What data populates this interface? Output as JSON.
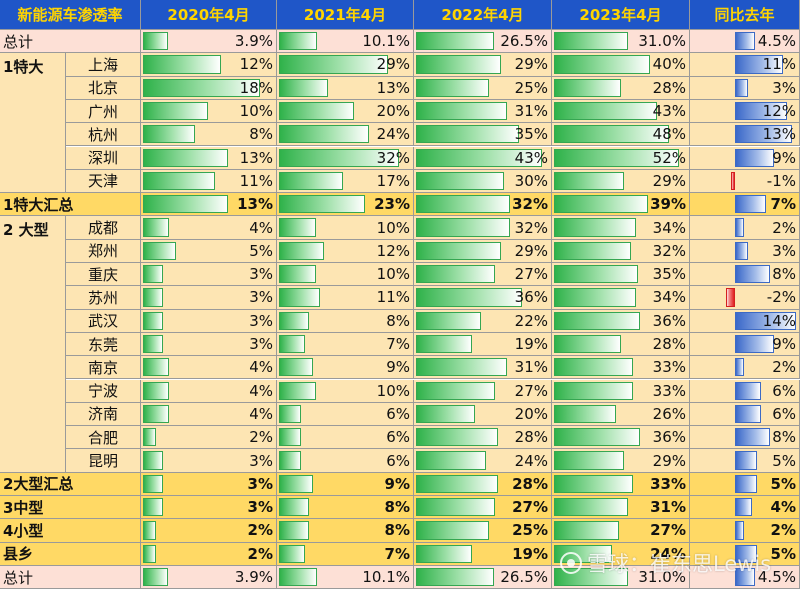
{
  "colors": {
    "header_bg": "#1f56c8",
    "header_text": "#ffd400",
    "total_bg": "#fde0d6",
    "group_bg": "#fde5b3",
    "subtotal_bg": "#ffd965",
    "bar_green": "#2fb24a",
    "bar_blue": "#3a68c9",
    "bar_red": "#e02020"
  },
  "table": {
    "title": "新能源车渗透率",
    "columns": [
      "2020年4月",
      "2021年4月",
      "2022年4月",
      "2023年4月",
      "同比去年"
    ],
    "rows": [
      {
        "kind": "total",
        "group": "总计",
        "city": "",
        "values": [
          "3.9%",
          "10.1%",
          "26.5%",
          "31.0%",
          "4.5%"
        ],
        "nums": [
          3.9,
          10.1,
          26.5,
          31.0,
          4.5
        ]
      },
      {
        "kind": "city",
        "group": "1特大",
        "city": "上海",
        "values": [
          "12%",
          "29%",
          "29%",
          "40%",
          "11%"
        ],
        "nums": [
          12,
          29,
          29,
          40,
          11
        ]
      },
      {
        "kind": "city",
        "group": "",
        "city": "北京",
        "values": [
          "18%",
          "13%",
          "25%",
          "28%",
          "3%"
        ],
        "nums": [
          18,
          13,
          25,
          28,
          3
        ]
      },
      {
        "kind": "city",
        "group": "",
        "city": "广州",
        "values": [
          "10%",
          "20%",
          "31%",
          "43%",
          "12%"
        ],
        "nums": [
          10,
          20,
          31,
          43,
          12
        ]
      },
      {
        "kind": "city",
        "group": "",
        "city": "杭州",
        "values": [
          "8%",
          "24%",
          "35%",
          "48%",
          "13%"
        ],
        "nums": [
          8,
          24,
          35,
          48,
          13
        ]
      },
      {
        "kind": "city",
        "group": "",
        "city": "深圳",
        "values": [
          "13%",
          "32%",
          "43%",
          "52%",
          "9%"
        ],
        "nums": [
          13,
          32,
          43,
          52,
          9
        ]
      },
      {
        "kind": "city",
        "group": "",
        "city": "天津",
        "values": [
          "11%",
          "17%",
          "30%",
          "29%",
          "-1%"
        ],
        "nums": [
          11,
          17,
          30,
          29,
          -1
        ]
      },
      {
        "kind": "subtotal",
        "group": "1特大汇总",
        "city": "",
        "values": [
          "13%",
          "23%",
          "32%",
          "39%",
          "7%"
        ],
        "nums": [
          13,
          23,
          32,
          39,
          7
        ]
      },
      {
        "kind": "city",
        "group": "2 大型",
        "city": "成都",
        "values": [
          "4%",
          "10%",
          "32%",
          "34%",
          "2%"
        ],
        "nums": [
          4,
          10,
          32,
          34,
          2
        ]
      },
      {
        "kind": "city",
        "group": "",
        "city": "郑州",
        "values": [
          "5%",
          "12%",
          "29%",
          "32%",
          "3%"
        ],
        "nums": [
          5,
          12,
          29,
          32,
          3
        ]
      },
      {
        "kind": "city",
        "group": "",
        "city": "重庆",
        "values": [
          "3%",
          "10%",
          "27%",
          "35%",
          "8%"
        ],
        "nums": [
          3,
          10,
          27,
          35,
          8
        ]
      },
      {
        "kind": "city",
        "group": "",
        "city": "苏州",
        "values": [
          "3%",
          "11%",
          "36%",
          "34%",
          "-2%"
        ],
        "nums": [
          3,
          11,
          36,
          34,
          -2
        ]
      },
      {
        "kind": "city",
        "group": "",
        "city": "武汉",
        "values": [
          "3%",
          "8%",
          "22%",
          "36%",
          "14%"
        ],
        "nums": [
          3,
          8,
          22,
          36,
          14
        ]
      },
      {
        "kind": "city",
        "group": "",
        "city": "东莞",
        "values": [
          "3%",
          "7%",
          "19%",
          "28%",
          "9%"
        ],
        "nums": [
          3,
          7,
          19,
          28,
          9
        ]
      },
      {
        "kind": "city",
        "group": "",
        "city": "南京",
        "values": [
          "4%",
          "9%",
          "31%",
          "33%",
          "2%"
        ],
        "nums": [
          4,
          9,
          31,
          33,
          2
        ]
      },
      {
        "kind": "city",
        "group": "",
        "city": "宁波",
        "values": [
          "4%",
          "10%",
          "27%",
          "33%",
          "6%"
        ],
        "nums": [
          4,
          10,
          27,
          33,
          6
        ]
      },
      {
        "kind": "city",
        "group": "",
        "city": "济南",
        "values": [
          "4%",
          "6%",
          "20%",
          "26%",
          "6%"
        ],
        "nums": [
          4,
          6,
          20,
          26,
          6
        ]
      },
      {
        "kind": "city",
        "group": "",
        "city": "合肥",
        "values": [
          "2%",
          "6%",
          "28%",
          "36%",
          "8%"
        ],
        "nums": [
          2,
          6,
          28,
          36,
          8
        ]
      },
      {
        "kind": "city",
        "group": "",
        "city": "昆明",
        "values": [
          "3%",
          "6%",
          "24%",
          "29%",
          "5%"
        ],
        "nums": [
          3,
          6,
          24,
          29,
          5
        ]
      },
      {
        "kind": "subtotal",
        "group": "2大型汇总",
        "city": "",
        "values": [
          "3%",
          "9%",
          "28%",
          "33%",
          "5%"
        ],
        "nums": [
          3,
          9,
          28,
          33,
          5
        ]
      },
      {
        "kind": "subtotal",
        "group": "3中型",
        "city": "",
        "values": [
          "3%",
          "8%",
          "27%",
          "31%",
          "4%"
        ],
        "nums": [
          3,
          8,
          27,
          31,
          4
        ]
      },
      {
        "kind": "subtotal",
        "group": "4小型",
        "city": "",
        "values": [
          "2%",
          "8%",
          "25%",
          "27%",
          "2%"
        ],
        "nums": [
          2,
          8,
          25,
          27,
          2
        ]
      },
      {
        "kind": "subtotal",
        "group": "县乡",
        "city": "",
        "values": [
          "2%",
          "7%",
          "19%",
          "24%",
          "5%"
        ],
        "nums": [
          2,
          7,
          19,
          24,
          5
        ]
      },
      {
        "kind": "total",
        "group": "总计",
        "city": "",
        "values": [
          "3.9%",
          "10.1%",
          "26.5%",
          "31.0%",
          "4.5%"
        ],
        "nums": [
          3.9,
          10.1,
          26.5,
          31.0,
          4.5
        ]
      }
    ]
  },
  "watermark": {
    "text": "雪球：崔东思Lewis",
    "icon": "snowball-logo-icon"
  }
}
